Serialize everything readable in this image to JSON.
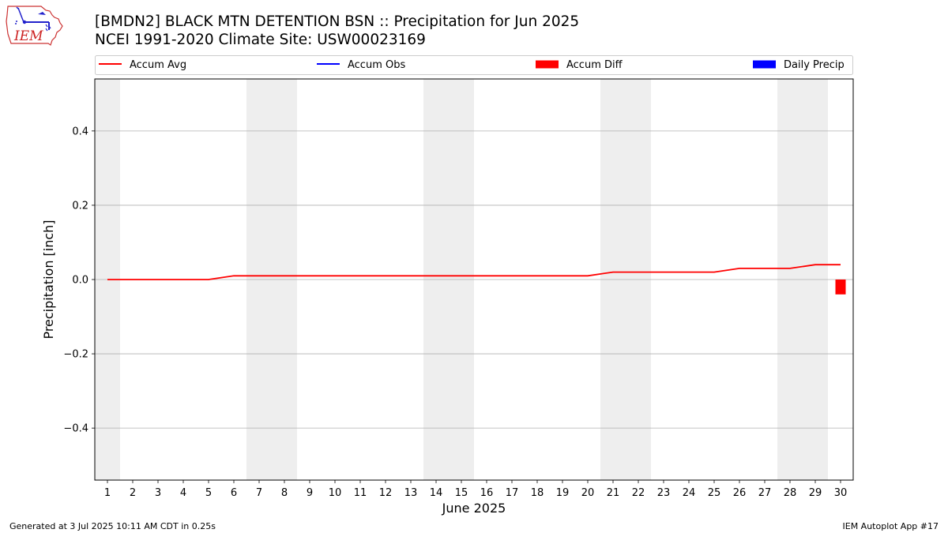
{
  "logo_text": "IEM",
  "title_line1": "[BMDN2] BLACK MTN DETENTION BSN :: Precipitation for Jun 2025",
  "title_line2": "NCEI 1991-2020 Climate Site: USW00023169",
  "footer_left": "Generated at 3 Jul 2025 10:11 AM CDT in 0.25s",
  "footer_right": "IEM Autoplot App #17",
  "colors": {
    "accum_avg": "#ff0000",
    "accum_obs": "#0000ff",
    "accum_diff": "#ff0000",
    "daily_precip": "#0000ff",
    "weekend_shade": "#eeeeee",
    "grid": "#b0b0b0"
  },
  "chart_data": {
    "type": "line",
    "title": "[BMDN2] BLACK MTN DETENTION BSN :: Precipitation for Jun 2025",
    "subtitle": "NCEI 1991-2020 Climate Site: USW00023169",
    "xlabel": "June 2025",
    "ylabel": "Precipitation [inch]",
    "xlim": [
      0.5,
      30.5
    ],
    "ylim": [
      -0.54,
      0.54
    ],
    "x": [
      1,
      2,
      3,
      4,
      5,
      6,
      7,
      8,
      9,
      10,
      11,
      12,
      13,
      14,
      15,
      16,
      17,
      18,
      19,
      20,
      21,
      22,
      23,
      24,
      25,
      26,
      27,
      28,
      29,
      30
    ],
    "yticks": [
      -0.4,
      -0.2,
      0.0,
      0.2,
      0.4
    ],
    "ytick_labels": [
      "−0.4",
      "−0.2",
      "0.0",
      "0.2",
      "0.4"
    ],
    "grid": "horizontal",
    "legend": {
      "placement": "top",
      "entries": [
        {
          "label": "Accum Avg",
          "kind": "line",
          "color": "#ff0000"
        },
        {
          "label": "Accum Obs",
          "kind": "line",
          "color": "#0000ff"
        },
        {
          "label": "Accum Diff",
          "kind": "bar",
          "color": "#ff0000"
        },
        {
          "label": "Daily Precip",
          "kind": "bar",
          "color": "#0000ff"
        }
      ]
    },
    "weekend_shading": [
      [
        0.5,
        1.5
      ],
      [
        6.5,
        8.5
      ],
      [
        13.5,
        15.5
      ],
      [
        20.5,
        22.5
      ],
      [
        27.5,
        29.5
      ]
    ],
    "series": [
      {
        "name": "Accum Avg",
        "type": "line",
        "color": "#ff0000",
        "x": [
          1,
          2,
          3,
          4,
          5,
          6,
          7,
          8,
          9,
          10,
          11,
          12,
          13,
          14,
          15,
          16,
          17,
          18,
          19,
          20,
          21,
          22,
          23,
          24,
          25,
          26,
          27,
          28,
          29,
          30
        ],
        "values": [
          0.0,
          0.0,
          0.0,
          0.0,
          0.0,
          0.01,
          0.01,
          0.01,
          0.01,
          0.01,
          0.01,
          0.01,
          0.01,
          0.01,
          0.01,
          0.01,
          0.01,
          0.01,
          0.01,
          0.01,
          0.02,
          0.02,
          0.02,
          0.02,
          0.02,
          0.03,
          0.03,
          0.03,
          0.04,
          0.04
        ]
      },
      {
        "name": "Accum Diff",
        "type": "bar",
        "color": "#ff0000",
        "x": [
          30
        ],
        "values": [
          -0.04
        ]
      }
    ]
  }
}
